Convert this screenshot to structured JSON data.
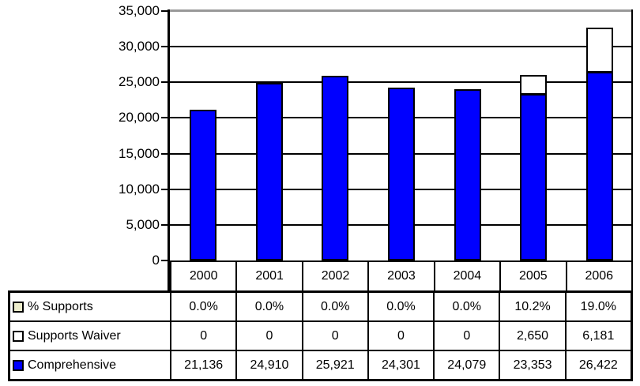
{
  "chart_data": {
    "type": "bar",
    "stacked": true,
    "title": "",
    "xlabel": "",
    "ylabel": "",
    "categories": [
      "2000",
      "2001",
      "2002",
      "2003",
      "2004",
      "2005",
      "2006"
    ],
    "series": [
      {
        "name": "% Supports",
        "display": [
          "0.0%",
          "0.0%",
          "0.0%",
          "0.0%",
          "0.0%",
          "10.2%",
          "19.0%"
        ],
        "values": [
          0.0,
          0.0,
          0.0,
          0.0,
          0.0,
          10.2,
          19.0
        ],
        "unit": "percent",
        "legend_fill": "#EDEDCC",
        "plotted_as_bar": false
      },
      {
        "name": "Supports Waiver",
        "display": [
          "0",
          "0",
          "0",
          "0",
          "0",
          "2,650",
          "6,181"
        ],
        "values": [
          0,
          0,
          0,
          0,
          0,
          2650,
          6181
        ],
        "legend_fill": "#FFFFFF",
        "bar_fill": "#FFFFFF",
        "plotted_as_bar": true
      },
      {
        "name": "Comprehensive",
        "display": [
          "21,136",
          "24,910",
          "25,921",
          "24,301",
          "24,079",
          "23,353",
          "26,422"
        ],
        "values": [
          21136,
          24910,
          25921,
          24301,
          24079,
          23353,
          26422
        ],
        "legend_fill": "#0000FF",
        "bar_fill": "#0000FF",
        "plotted_as_bar": true
      }
    ],
    "ylim": [
      0,
      35000
    ],
    "y_tick_interval": 5000,
    "y_tick_labels": [
      "35,000",
      "30,000",
      "25,000",
      "20,000",
      "15,000",
      "10,000",
      "5,000",
      "0"
    ],
    "grid": true,
    "legend_position": "table-rows-left"
  },
  "colors": {
    "bar_blue": "#0000FF",
    "bar_white": "#FFFFFF",
    "supports_legend_fill": "#EDEDCC",
    "gridline": "#000000",
    "top_gridline": "#999999",
    "axis_and_borders": "#000000",
    "background": "#FFFFFF",
    "text": "#000000"
  }
}
